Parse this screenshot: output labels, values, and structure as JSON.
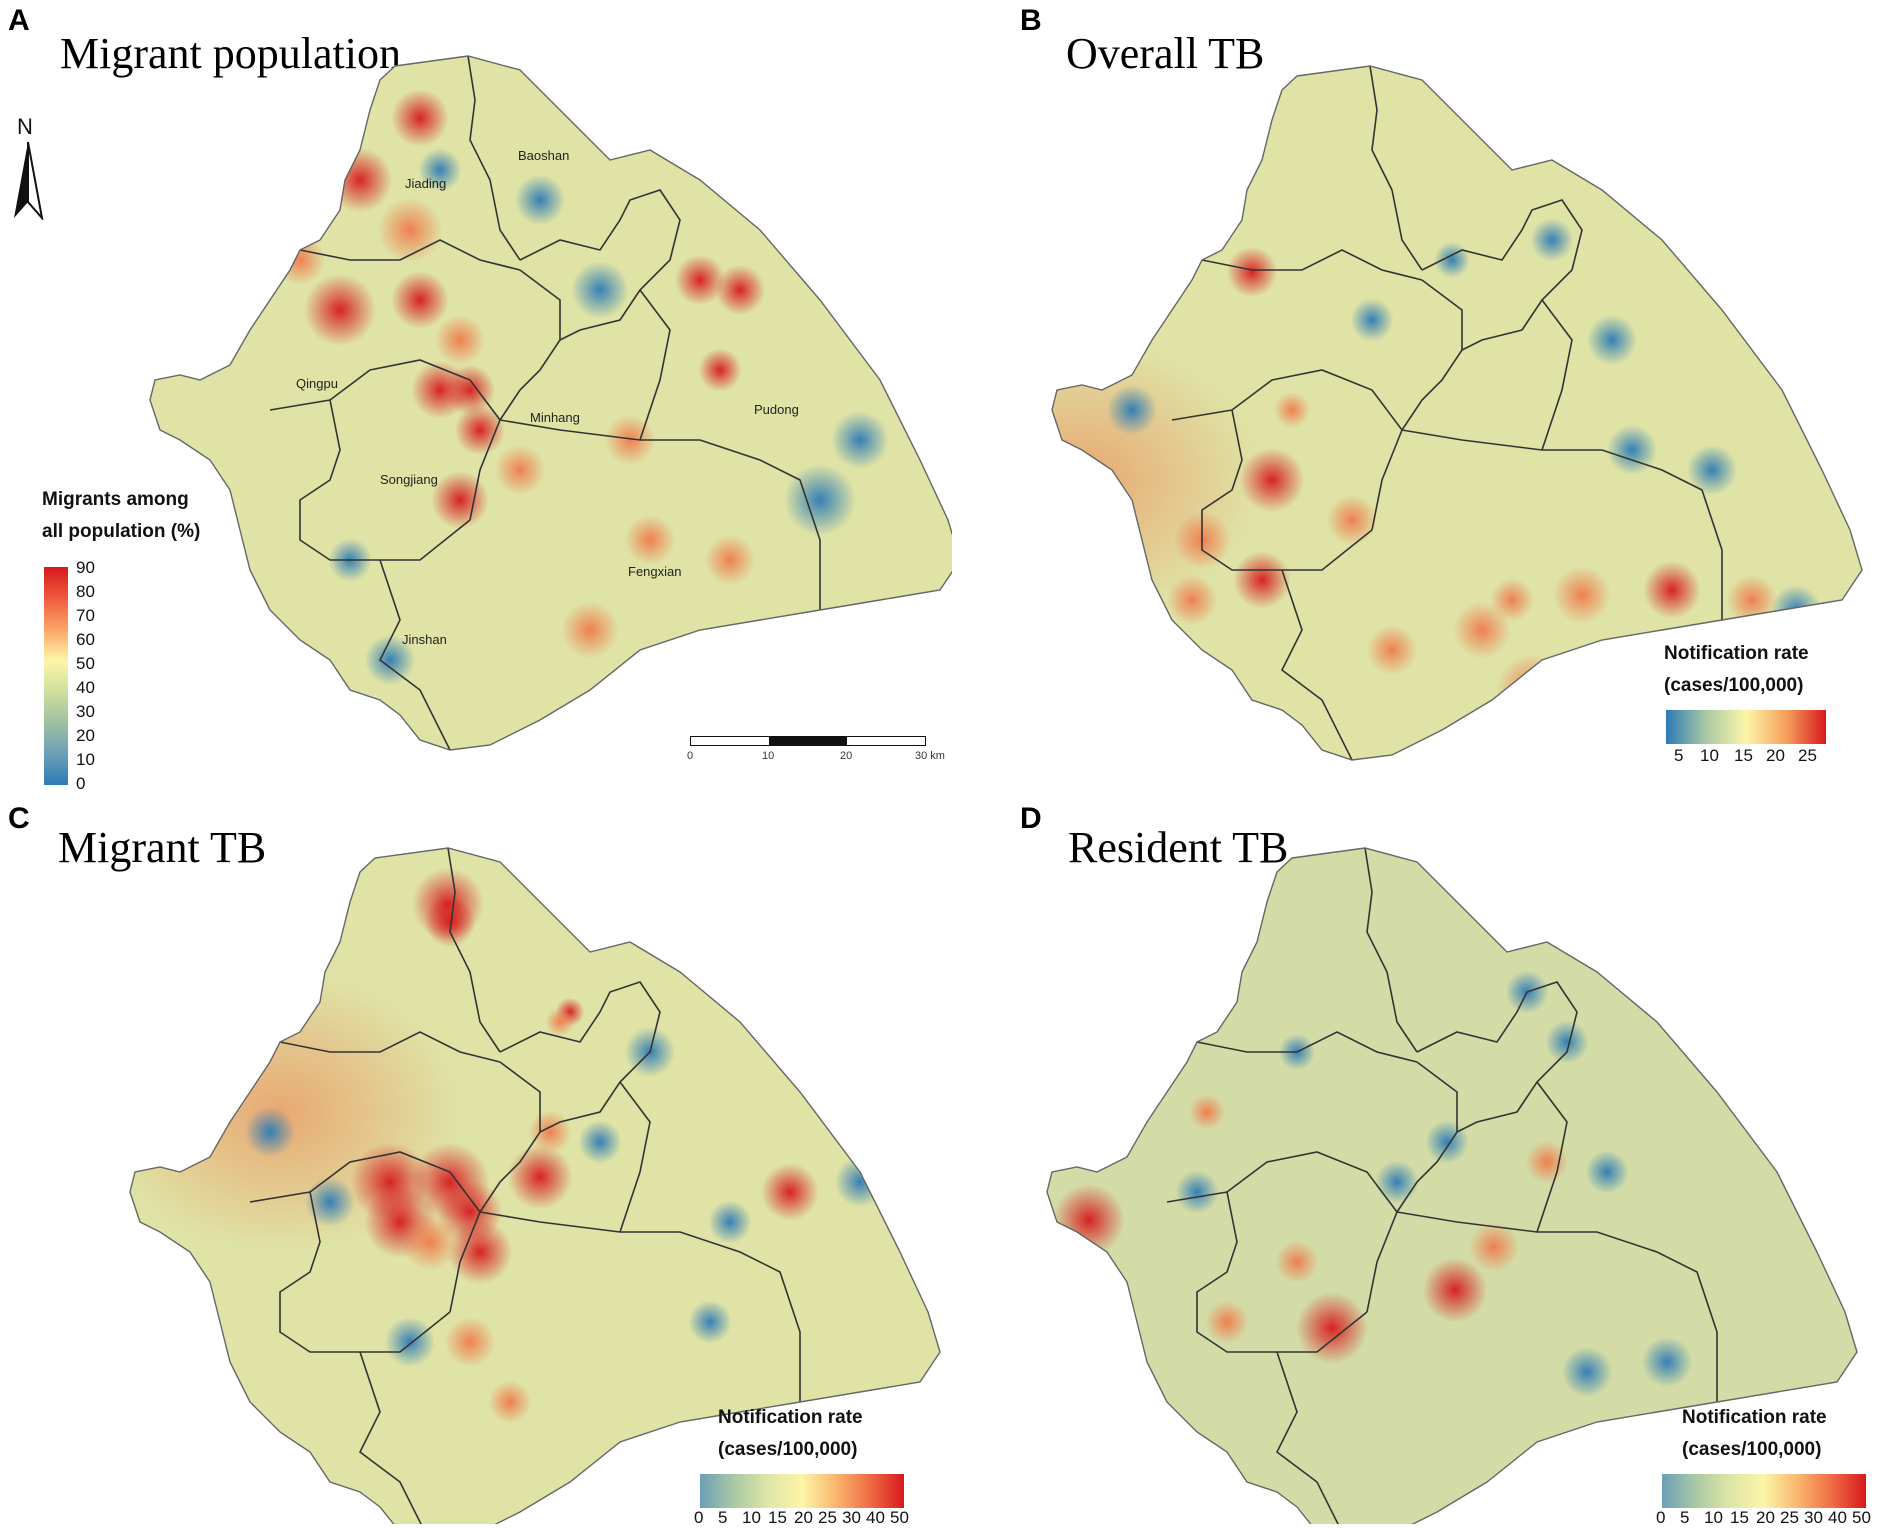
{
  "figure": {
    "panels": [
      {
        "letter": "A",
        "title": "Migrant population",
        "districts": [
          "Baoshan",
          "Jiading",
          "Qingpu",
          "Minhang",
          "Pudong",
          "Songjiang",
          "Fengxian",
          "Jinshan"
        ],
        "legend": {
          "title_line1": "Migrants among",
          "title_line2": "all population (%)",
          "ticks": [
            "90",
            "80",
            "70",
            "60",
            "50",
            "40",
            "30",
            "20",
            "10",
            "0"
          ]
        },
        "north": "N",
        "scale_bar": {
          "labels": [
            "0",
            "10",
            "20",
            "30 km"
          ]
        }
      },
      {
        "letter": "B",
        "title": "Overall TB",
        "legend": {
          "title_line1": "Notification rate",
          "title_line2": "(cases/100,000)",
          "ticks": [
            "5",
            "10",
            "15",
            "20",
            "25"
          ]
        }
      },
      {
        "letter": "C",
        "title": "Migrant TB",
        "legend": {
          "title_line1": "Notification rate",
          "title_line2": "(cases/100,000)",
          "ticks": [
            "0",
            "5",
            "10",
            "15",
            "20",
            "25",
            "30",
            "40",
            "50"
          ]
        }
      },
      {
        "letter": "D",
        "title": "Resident TB",
        "legend": {
          "title_line1": "Notification rate",
          "title_line2": "(cases/100,000)",
          "ticks": [
            "0",
            "5",
            "10",
            "15",
            "20",
            "25",
            "30",
            "40",
            "50"
          ]
        }
      }
    ],
    "colors": {
      "high": "#d7191c",
      "mid_high": "#f07b4c",
      "mid": "#fdf5a8",
      "mid_low": "#b6cfa0",
      "low": "#2c7bb6",
      "base_fill": "#dfe3a6",
      "border": "#333333"
    }
  }
}
